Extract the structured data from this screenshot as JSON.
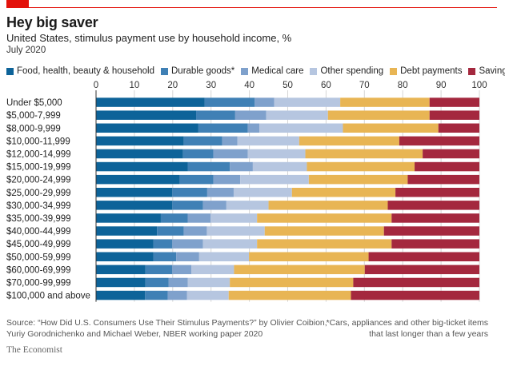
{
  "header": {
    "title": "Hey big saver",
    "subtitle": "United States, stimulus payment use by household income, %",
    "date": "July 2020"
  },
  "footer": {
    "source_line1": "Source: “How Did U.S. Consumers Use Their Stimulus Payments?” by Olivier Coibion,",
    "source_line2": "Yuriy Gorodnichenko and Michael Weber, NBER working paper 2020",
    "footnote_line1": "*Cars, appliances and other big-ticket items",
    "footnote_line2": "that last longer than a few years",
    "brand": "The Economist"
  },
  "chart_data": {
    "type": "bar",
    "orientation": "horizontal",
    "stacked": true,
    "title": "Hey big saver",
    "subtitle": "United States, stimulus payment use by household income, %",
    "xlabel": "",
    "ylabel": "",
    "xlim": [
      0,
      100
    ],
    "xticks": [
      0,
      10,
      20,
      30,
      40,
      50,
      60,
      70,
      80,
      90,
      100
    ],
    "grid": true,
    "legend_position": "top",
    "categories": [
      "Under $5,000",
      "$5,000-7,999",
      "$8,000-9,999",
      "$10,000-11,999",
      "$12,000-14,999",
      "$15,000-19,999",
      "$20,000-24,999",
      "$25,000-29,999",
      "$30,000-34,999",
      "$35,000-39,999",
      "$40,000-44,999",
      "$45,000-49,999",
      "$50,000-59,999",
      "$60,000-69,999",
      "$70,000-99,999",
      "$100,000 and above"
    ],
    "series": [
      {
        "name": "Food, health, beauty & household",
        "color": "#0d6399",
        "values": [
          28.3,
          26.1,
          26.7,
          22.9,
          22.7,
          23.9,
          21.8,
          19.9,
          19.9,
          16.9,
          15.9,
          15.0,
          15.0,
          12.9,
          12.9,
          12.8
        ]
      },
      {
        "name": "Durable goods*",
        "color": "#3f80b5",
        "values": [
          13.1,
          10.2,
          12.9,
          10.0,
          7.9,
          11.0,
          8.8,
          9.1,
          8.0,
          7.0,
          7.0,
          4.9,
          5.9,
          7.0,
          6.0,
          5.9
        ]
      },
      {
        "name": "Medical care",
        "color": "#7fa1cc",
        "values": [
          5.1,
          8.1,
          3.0,
          4.0,
          9.0,
          6.0,
          7.0,
          6.9,
          6.1,
          6.0,
          6.0,
          8.0,
          6.0,
          5.0,
          5.0,
          5.0
        ]
      },
      {
        "name": "Other spending",
        "color": "#b6c6e0",
        "values": [
          17.2,
          16.1,
          21.8,
          16.1,
          15.0,
          14.1,
          17.9,
          15.2,
          11.0,
          12.1,
          15.1,
          14.1,
          13.0,
          11.1,
          11.0,
          10.9
        ]
      },
      {
        "name": "Debt payments",
        "color": "#e8b554",
        "values": [
          23.3,
          26.5,
          24.9,
          26.1,
          30.6,
          28.1,
          25.8,
          27.0,
          31.1,
          35.1,
          31.1,
          35.1,
          31.2,
          34.1,
          32.2,
          31.9
        ]
      },
      {
        "name": "Savings",
        "color": "#a4283e",
        "values": [
          13.0,
          13.0,
          10.7,
          20.9,
          14.8,
          16.9,
          18.7,
          21.9,
          23.9,
          22.9,
          24.9,
          22.9,
          28.9,
          29.9,
          32.9,
          33.5
        ]
      }
    ]
  }
}
